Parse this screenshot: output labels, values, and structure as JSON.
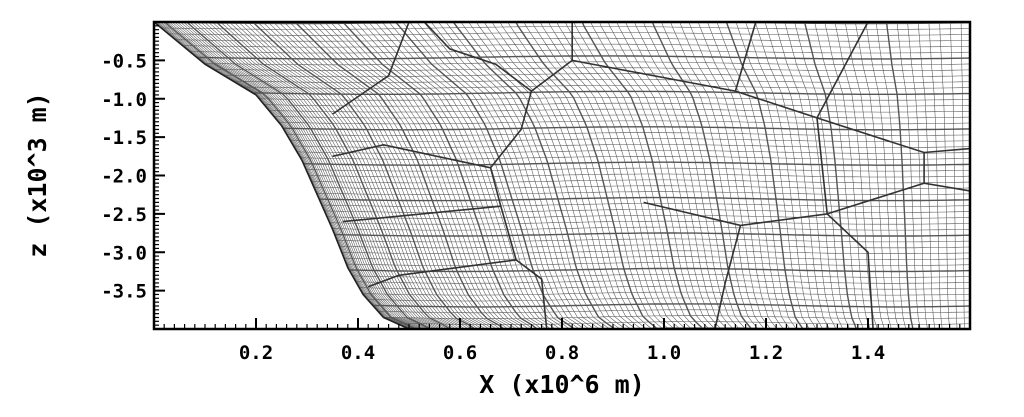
{
  "chart_data": {
    "type": "mesh",
    "xlabel": "X (x10^6 m)",
    "ylabel": "z (x10^3 m)",
    "xlim": [
      0.0,
      1.6
    ],
    "ylim": [
      -4.0,
      0.0
    ],
    "x_ticks": [
      {
        "value": 0.2,
        "label": "0.2"
      },
      {
        "value": 0.4,
        "label": "0.4"
      },
      {
        "value": 0.6,
        "label": "0.6"
      },
      {
        "value": 0.8,
        "label": "0.8"
      },
      {
        "value": 1.0,
        "label": "1.0"
      },
      {
        "value": 1.2,
        "label": "1.2"
      },
      {
        "value": 1.4,
        "label": "1.4"
      }
    ],
    "y_ticks": [
      {
        "value": -0.5,
        "label": "-0.5"
      },
      {
        "value": -1.0,
        "label": "-1.0"
      },
      {
        "value": -1.5,
        "label": "-1.5"
      },
      {
        "value": -2.0,
        "label": "-2.0"
      },
      {
        "value": -2.5,
        "label": "-2.5"
      },
      {
        "value": -3.0,
        "label": "-3.0"
      },
      {
        "value": -3.5,
        "label": "-3.5"
      }
    ],
    "bathymetry_boundary": [
      [
        0.0,
        0.0
      ],
      [
        0.1,
        -0.55
      ],
      [
        0.2,
        -0.95
      ],
      [
        0.25,
        -1.35
      ],
      [
        0.29,
        -1.8
      ],
      [
        0.32,
        -2.25
      ],
      [
        0.35,
        -2.7
      ],
      [
        0.38,
        -3.2
      ],
      [
        0.41,
        -3.55
      ],
      [
        0.45,
        -3.85
      ],
      [
        0.5,
        -4.0
      ]
    ],
    "grid_on": false,
    "line_color": "#555555",
    "background_color": "#ffffff"
  }
}
